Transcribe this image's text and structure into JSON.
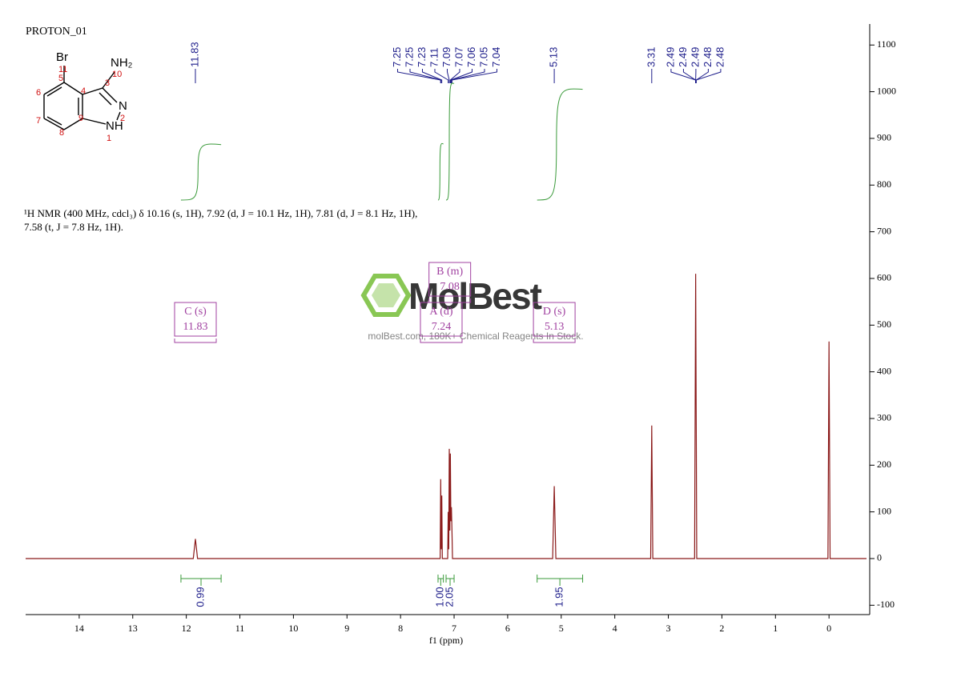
{
  "title": "PROTON_01",
  "structure": {
    "atoms": [
      "Br",
      "NH₂",
      "N",
      "NH"
    ],
    "numbers": [
      "11",
      "5",
      "3",
      "10",
      "4",
      "6",
      "7",
      "9",
      "2",
      "8",
      "1"
    ]
  },
  "description": [
    "¹H NMR (400 MHz, cdcl₃) δ 10.16 (s, 1H), 7.92 (d, J = 10.1 Hz, 1H), 7.81 (d, J = 8.1 Hz, 1H),",
    "7.58 (t, J = 7.8 Hz, 1H)."
  ],
  "watermark": {
    "logo": "MolBest",
    "text": "molBest.com, 180K+ Chemical Reagents In Stock."
  },
  "chart_data": {
    "type": "line",
    "x_label": "f1 (ppm)",
    "xlim": [
      15,
      -0.7
    ],
    "ylim": [
      -120,
      1145
    ],
    "xticks": [
      14,
      13,
      12,
      11,
      10,
      9,
      8,
      7,
      6,
      5,
      4,
      3,
      2,
      1,
      0
    ],
    "yticks": [
      -100,
      0,
      100,
      200,
      300,
      400,
      500,
      600,
      700,
      800,
      900,
      1000,
      1100
    ],
    "series": [
      {
        "color": "#8b1a1a",
        "x": [
          15,
          11.87,
          11.83,
          11.79,
          7.26,
          7.25,
          7.24,
          7.23,
          7.22,
          7.12,
          7.11,
          7.1,
          7.09,
          7.08,
          7.07,
          7.06,
          7.05,
          7.04,
          7.03,
          5.16,
          5.13,
          5.1,
          3.33,
          3.31,
          3.29,
          2.51,
          2.49,
          2.47,
          0.02,
          0,
          -0.02,
          -0.7
        ],
        "values": [
          0,
          0,
          42,
          0,
          0,
          170,
          20,
          135,
          0,
          0,
          100,
          20,
          235,
          60,
          225,
          80,
          110,
          60,
          0,
          0,
          155,
          0,
          0,
          285,
          0,
          0,
          610,
          0,
          0,
          465,
          0,
          0
        ]
      }
    ],
    "peak_labels": {
      "color": "#1c1c8a",
      "values": [
        11.83,
        7.25,
        7.25,
        7.23,
        7.11,
        7.09,
        7.07,
        7.06,
        7.05,
        7.04,
        5.13,
        3.31,
        2.49,
        2.49,
        2.49,
        2.48,
        2.48
      ]
    },
    "integrals": {
      "color": "#3a9a3a",
      "ranges": [
        [
          12.1,
          11.35
        ],
        [
          7.3,
          7.2
        ],
        [
          7.15,
          7.0
        ],
        [
          5.45,
          4.6
        ]
      ],
      "values": [
        0.99,
        1,
        2.05,
        1.95
      ],
      "value_labels": [
        "0.99",
        "1.00",
        "2.05",
        "1.95"
      ]
    },
    "multiplets": {
      "color": "#a040a0",
      "labels": [
        "C (s)",
        "B (m)",
        "A (d)",
        "D (s)"
      ],
      "shifts": [
        11.83,
        7.08,
        7.24,
        5.13
      ]
    }
  }
}
